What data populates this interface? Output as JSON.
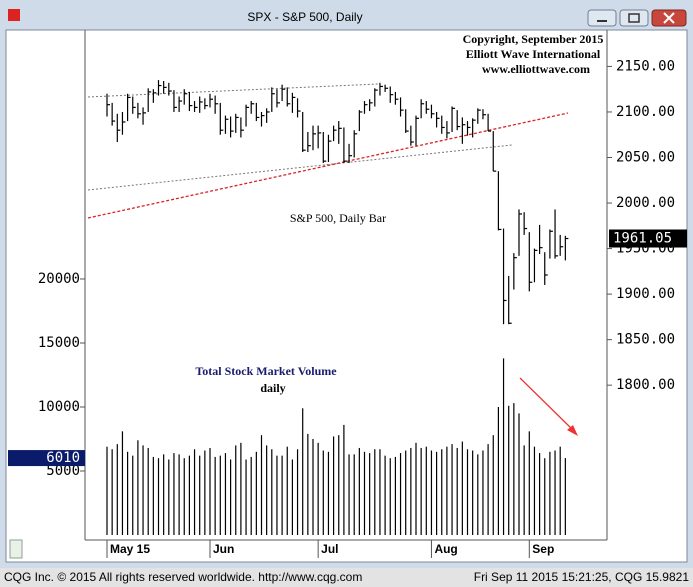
{
  "chart_data": {
    "type": "ohlc",
    "title": "SPX - S&P 500, Daily",
    "annotations": [
      "Copyright, September 2015",
      "Elliott Wave International",
      "www.elliottwave.com",
      "S&P 500, Daily Bar",
      "Total Stock Market Volume",
      "daily"
    ],
    "xticks": [
      {
        "value": 0,
        "label": "May 15"
      },
      {
        "value": 20,
        "label": "Jun"
      },
      {
        "value": 41,
        "label": "Jul"
      },
      {
        "value": 63,
        "label": "Aug"
      },
      {
        "value": 82,
        "label": "Sep"
      }
    ],
    "high": [
      2120,
      2110,
      2098,
      2100,
      2120,
      2117,
      2110,
      2105,
      2126,
      2125,
      2135,
      2134,
      2132,
      2124,
      2117,
      2125,
      2122,
      2112,
      2117,
      2115,
      2120,
      2118,
      2110,
      2096,
      2095,
      2098,
      2094,
      2108,
      2112,
      2110,
      2100,
      2104,
      2127,
      2125,
      2130,
      2127,
      2121,
      2115,
      2100,
      2078,
      2085,
      2085,
      2078,
      2075,
      2085,
      2090,
      2083,
      2065,
      2080,
      2102,
      2112,
      2114,
      2126,
      2132,
      2130,
      2128,
      2122,
      2116,
      2103,
      2085,
      2096,
      2114,
      2112,
      2108,
      2100,
      2096,
      2090,
      2106,
      2102,
      2094,
      2090,
      2093,
      2104,
      2103,
      2098,
      2079,
      2035,
      1972,
      1920,
      1945,
      1993,
      1990,
      1968,
      1950,
      1976,
      1946,
      1971,
      1993,
      1965,
      1964
    ],
    "low": [
      2095,
      2085,
      2067,
      2075,
      2090,
      2098,
      2093,
      2086,
      2100,
      2110,
      2118,
      2120,
      2118,
      2100,
      2100,
      2108,
      2101,
      2100,
      2099,
      2103,
      2105,
      2098,
      2075,
      2076,
      2072,
      2077,
      2072,
      2084,
      2098,
      2090,
      2084,
      2088,
      2100,
      2105,
      2112,
      2106,
      2099,
      2094,
      2056,
      2056,
      2058,
      2060,
      2044,
      2045,
      2068,
      2065,
      2044,
      2044,
      2050,
      2079,
      2098,
      2101,
      2106,
      2118,
      2122,
      2110,
      2108,
      2095,
      2077,
      2063,
      2063,
      2093,
      2098,
      2093,
      2083,
      2076,
      2071,
      2078,
      2080,
      2065,
      2074,
      2072,
      2087,
      2092,
      2079,
      2035,
      1970,
      1867,
      1867,
      1905,
      1942,
      1965,
      1903,
      1913,
      1944,
      1910,
      1939,
      1939,
      1942,
      1937
    ],
    "close": [
      2108,
      2090,
      2080,
      2089,
      2116,
      2105,
      2098,
      2099,
      2122,
      2121,
      2129,
      2127,
      2123,
      2105,
      2112,
      2120,
      2107,
      2105,
      2111,
      2107,
      2114,
      2109,
      2080,
      2092,
      2079,
      2094,
      2080,
      2105,
      2109,
      2094,
      2096,
      2100,
      2120,
      2110,
      2125,
      2109,
      2116,
      2101,
      2058,
      2063,
      2076,
      2077,
      2046,
      2068,
      2080,
      2082,
      2046,
      2052,
      2076,
      2100,
      2108,
      2110,
      2124,
      2128,
      2126,
      2119,
      2114,
      2102,
      2079,
      2067,
      2093,
      2109,
      2103,
      2098,
      2093,
      2083,
      2077,
      2104,
      2084,
      2086,
      2083,
      2091,
      2102,
      2097,
      2079,
      2035,
      1971,
      1893,
      1868,
      1940,
      1988,
      1972,
      1913,
      1948,
      1951,
      1921,
      1969,
      1942,
      1952,
      1961.05
    ],
    "volume": [
      6900,
      6700,
      7100,
      8100,
      6500,
      6200,
      7400,
      7000,
      6800,
      6100,
      6000,
      6300,
      5900,
      6400,
      6300,
      6000,
      6200,
      6700,
      6200,
      6600,
      6800,
      6100,
      6200,
      6400,
      5900,
      7000,
      7200,
      5900,
      6100,
      6500,
      7800,
      7000,
      6700,
      6200,
      6200,
      6900,
      5900,
      6700,
      9900,
      7900,
      7500,
      7200,
      6600,
      6500,
      7700,
      7800,
      8600,
      6300,
      6300,
      6800,
      6500,
      6400,
      6700,
      6700,
      6200,
      6000,
      6100,
      6400,
      6600,
      6800,
      7200,
      6800,
      6900,
      6600,
      6500,
      6700,
      6900,
      7100,
      6800,
      7300,
      6700,
      6600,
      6300,
      6600,
      7100,
      7800,
      10000,
      13800,
      10100,
      10300,
      9500,
      7000,
      8100,
      6900,
      6400,
      6000,
      6500,
      6600,
      6900,
      6010
    ],
    "color": "#000000",
    "ylim": [
      1630,
      2190
    ],
    "yticks": [
      {
        "value": 1800,
        "label": "1800.00"
      },
      {
        "value": 1850,
        "label": "1850.00"
      },
      {
        "value": 1900,
        "label": "1900.00"
      },
      {
        "value": 1950,
        "label": "1950.00"
      },
      {
        "value": 2000,
        "label": "2000.00"
      },
      {
        "value": 2050,
        "label": "2050.00"
      },
      {
        "value": 2100,
        "label": "2100.00"
      },
      {
        "value": 2150,
        "label": "2150.00"
      }
    ],
    "y2lim": [
      -390,
      39450
    ],
    "y2ticks": [
      5000,
      10000,
      15000,
      20000
    ],
    "grid": false
  },
  "window": {
    "footer_left": "CQG Inc. © 2015 All rights reserved worldwide. http://www.cqg.com",
    "footer_right": "Fri Sep 11 2015 15:21:25, CQG 15.9821"
  }
}
